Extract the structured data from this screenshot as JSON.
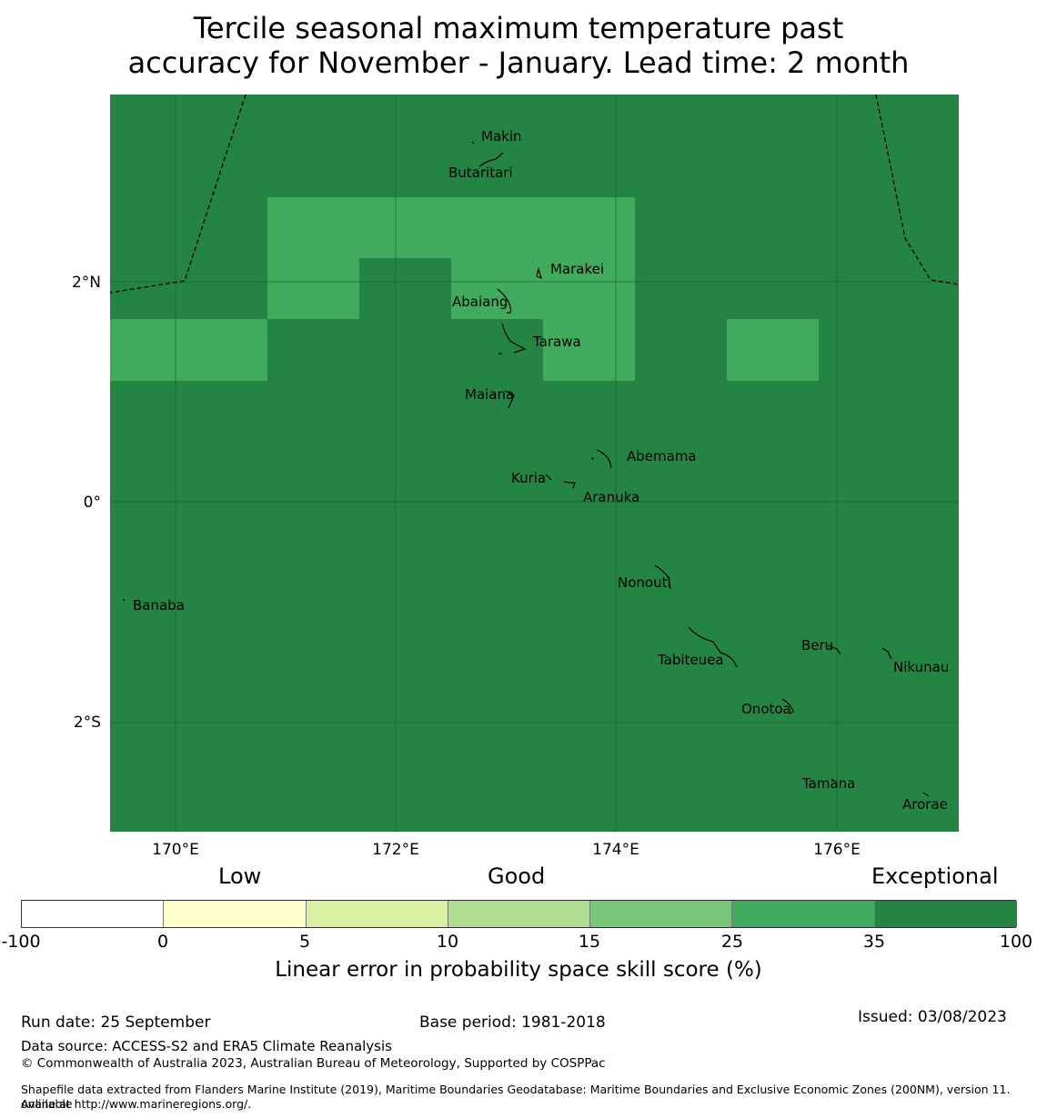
{
  "title": {
    "line1": "Tercile seasonal maximum temperature past",
    "line2": "accuracy for November - January. Lead time: 2 month"
  },
  "map": {
    "lat_labels": [
      "2°N",
      "0°",
      "2°S"
    ],
    "lon_labels": [
      "170°E",
      "172°E",
      "174°E",
      "176°E"
    ],
    "colors": {
      "exceptional": "#238443",
      "very_good": "#41ab5d"
    },
    "places": [
      "Makin",
      "Butaritari",
      "Marakei",
      "Abaiang",
      "Tarawa",
      "Maiana",
      "Abemama",
      "Kuria",
      "Aranuka",
      "Nonouti",
      "Banaba",
      "Beru",
      "Nikunau",
      "Tabiteuea",
      "Onotoa",
      "Tamana",
      "Arorae"
    ]
  },
  "legend": {
    "categories": [
      "Low",
      "Good",
      "Exceptional"
    ],
    "ticks": [
      "-100",
      "0",
      "5",
      "10",
      "15",
      "25",
      "35",
      "100"
    ],
    "colors": [
      "#ffffff",
      "#ffffcc",
      "#d9f0a3",
      "#addd8e",
      "#78c679",
      "#41ab5d",
      "#238443"
    ],
    "label": "Linear error in probability space skill score (%)"
  },
  "footer": {
    "run_date": "Run date: 25 September",
    "base_period": "Base period: 1981-2018",
    "issued": "Issued: 03/08/2023",
    "data_source": "Data source: ACCESS-S2 and ERA5 Climate Reanalysis",
    "copyright": "© Commonwealth of Australia 2023, Australian Bureau of Meteorology, Supported by COSPPac",
    "shapefile1": "Shapefile data extracted from Flanders Marine Institute (2019), Maritime Boundaries Geodatabase: Maritime Boundaries and Exclusive Economic Zones (200NM), version 11. Available",
    "shapefile2": "online at http://www.marineregions.org/."
  }
}
